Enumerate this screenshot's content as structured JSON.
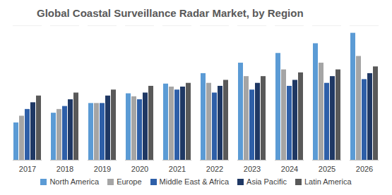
{
  "chart_data": {
    "type": "bar",
    "title": "Global Coastal Surveillance Radar Market, by Region",
    "categories": [
      "2017",
      "2018",
      "2019",
      "2020",
      "2021",
      "2022",
      "2023",
      "2024",
      "2025",
      "2026"
    ],
    "series": [
      {
        "name": "North America",
        "color": "#5b9bd5",
        "values": [
          50,
          63,
          76,
          89,
          102,
          116,
          130,
          143,
          156,
          170
        ]
      },
      {
        "name": "Europe",
        "color": "#a5a5a5",
        "values": [
          59,
          68,
          76,
          85,
          98,
          103,
          112,
          121,
          130,
          139
        ]
      },
      {
        "name": "Middle East & Africa",
        "color": "#2e5fa8",
        "values": [
          68,
          72,
          76,
          81,
          94,
          90,
          94,
          99,
          103,
          108
        ]
      },
      {
        "name": "Asia Pacific",
        "color": "#1f3864",
        "values": [
          77,
          81,
          86,
          90,
          98,
          99,
          103,
          107,
          112,
          116
        ]
      },
      {
        "name": "Latin America",
        "color": "#595959",
        "values": [
          86,
          90,
          94,
          99,
          103,
          107,
          112,
          117,
          121,
          125
        ]
      }
    ],
    "ylim": [
      0,
      180
    ],
    "yticks": [],
    "grid": false,
    "legend": "bottom",
    "tick_labels": "x"
  }
}
